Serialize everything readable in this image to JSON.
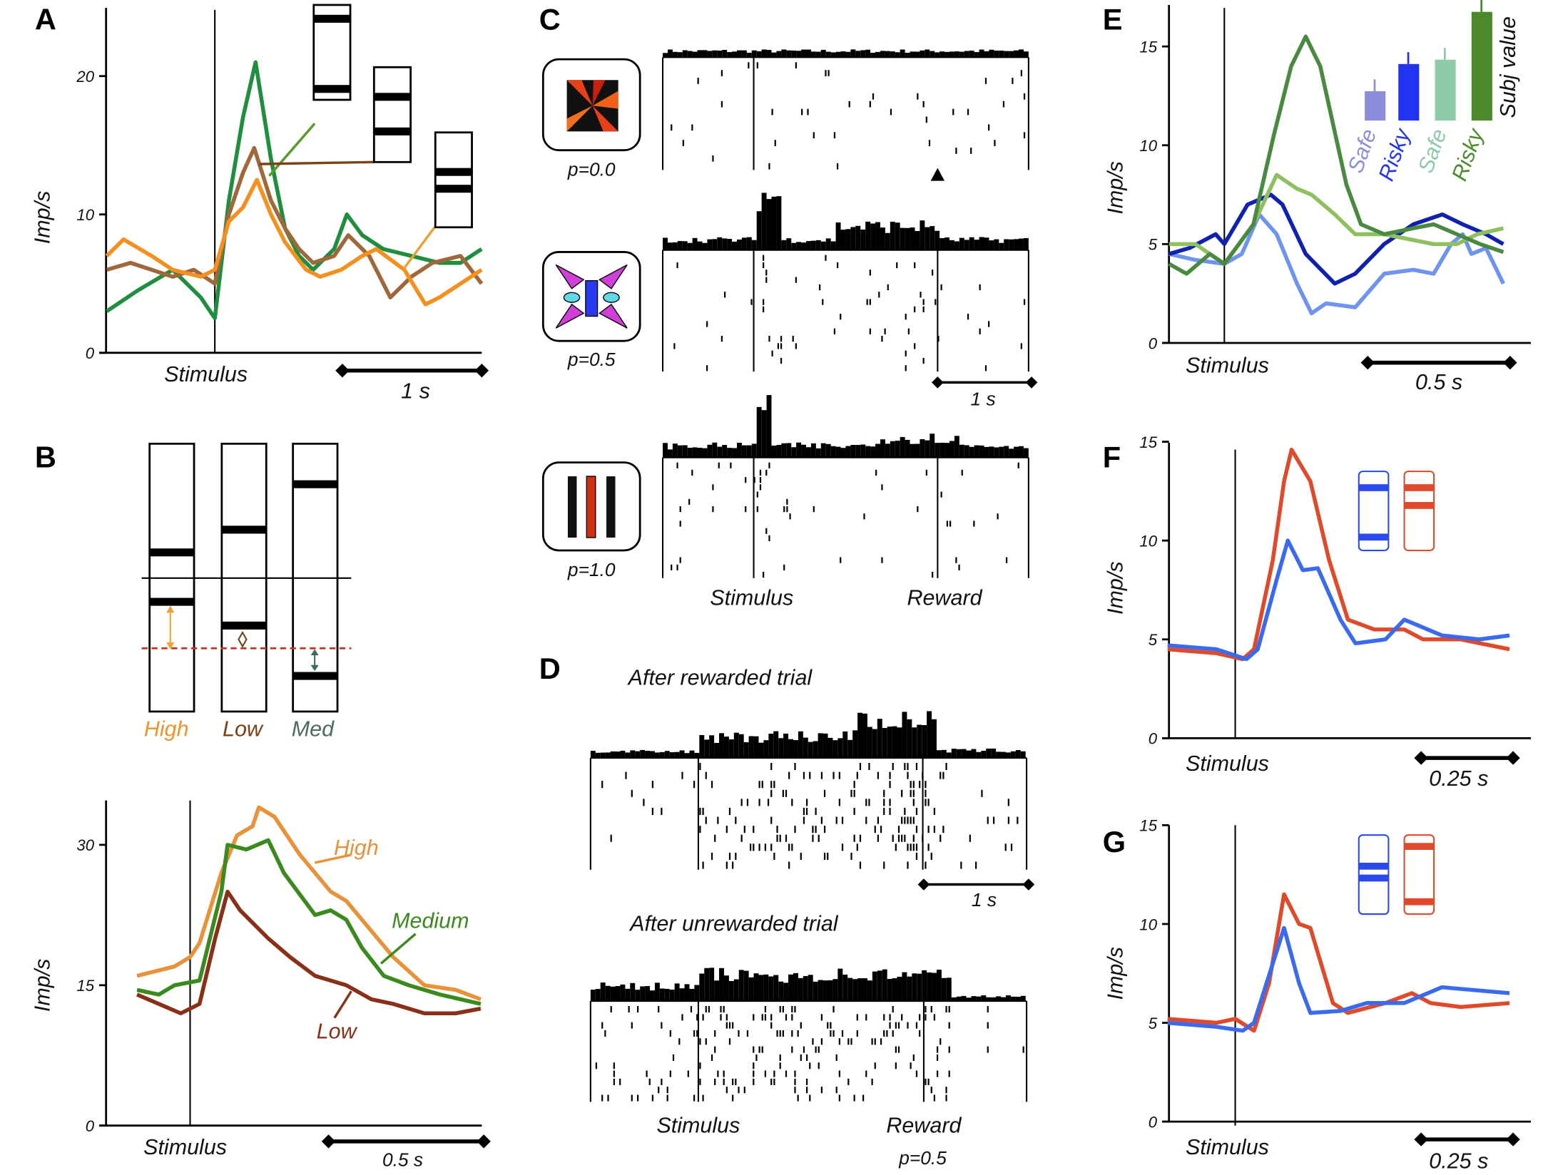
{
  "panel_labels": {
    "A": "A",
    "B": "B",
    "C": "C",
    "D": "D",
    "E": "E",
    "F": "F",
    "G": "G"
  },
  "common": {
    "stimulus": "Stimulus",
    "reward": "Reward",
    "ylabel": "Imp/s"
  },
  "panel_a": {
    "scale_bar": "1 s"
  },
  "panel_b": {
    "schematic_labels": [
      {
        "text": "High",
        "color": "#f0932b"
      },
      {
        "text": "Low",
        "color": "#7a3f12"
      },
      {
        "text": "Med",
        "color": "#4c6b5c"
      }
    ],
    "scale_bar": "0.5 s"
  },
  "panel_c": {
    "rows": [
      {
        "prob": "p=0.0",
        "icon": "pinwheel-stimulus"
      },
      {
        "prob": "p=0.5",
        "icon": "bowtie-stimulus"
      },
      {
        "prob": "p=1.0",
        "icon": "bars-stimulus"
      }
    ],
    "scale_bar": "1 s"
  },
  "panel_d": {
    "title_rewarded": "After rewarded trial",
    "title_unrewarded": "After unrewarded trial",
    "scale_bar": "1 s",
    "prob": "p=0.5"
  },
  "panel_e": {
    "scale_bar": "0.5 s",
    "inset_title": "Subj value",
    "inset_bars": [
      {
        "label": "Safe",
        "color": "#8b8fdb",
        "relative_value": 0.27
      },
      {
        "label": "Risky",
        "color": "#2234f0",
        "relative_value": 0.52
      },
      {
        "label": "Safe",
        "color": "#8dcaa8",
        "relative_value": 0.56
      },
      {
        "label": "Risky",
        "color": "#4a8a2a",
        "relative_value": 1.0
      }
    ]
  },
  "panel_f": {
    "scale_bar": "0.25 s"
  },
  "panel_g": {
    "scale_bar": "0.25 s"
  },
  "chart_data": [
    {
      "panel": "A",
      "type": "line",
      "xlabel": "Stimulus",
      "ylabel": "Imp/s",
      "x_units": "s",
      "ylim": [
        0,
        24
      ],
      "y_ticks": [
        0,
        10,
        20
      ],
      "series": [
        {
          "color": "#1f8f3f",
          "x": [
            -0.77,
            -0.55,
            -0.3,
            -0.1,
            0,
            0.1,
            0.2,
            0.29,
            0.4,
            0.5,
            0.6,
            0.7,
            0.85,
            0.94,
            1.05,
            1.2,
            1.4,
            1.6,
            1.75,
            1.9
          ],
          "y": [
            3,
            4.5,
            6,
            4,
            2.5,
            11,
            17,
            21,
            14,
            9,
            7,
            6,
            7.5,
            10,
            8.5,
            7.5,
            7,
            6.5,
            6.5,
            7.5
          ]
        },
        {
          "color": "#a0683a",
          "x": [
            -0.77,
            -0.6,
            -0.45,
            -0.3,
            -0.15,
            0,
            0.1,
            0.2,
            0.28,
            0.4,
            0.5,
            0.6,
            0.7,
            0.85,
            0.95,
            1.1,
            1.25,
            1.4,
            1.55,
            1.75,
            1.9
          ],
          "y": [
            6,
            6.5,
            6,
            5.5,
            6,
            5,
            10,
            13,
            14.8,
            11,
            9,
            7.5,
            6.5,
            7,
            8.5,
            7,
            4,
            5.5,
            6.5,
            7,
            5
          ]
        },
        {
          "color": "#f5901e",
          "x": [
            -0.77,
            -0.65,
            -0.45,
            -0.3,
            -0.1,
            0,
            0.1,
            0.2,
            0.3,
            0.4,
            0.5,
            0.65,
            0.75,
            0.9,
            1.05,
            1.15,
            1.35,
            1.5,
            1.6,
            1.75,
            1.9
          ],
          "y": [
            7,
            8.2,
            7,
            6,
            5.5,
            6,
            9.5,
            10.5,
            12.5,
            10,
            8,
            6,
            5.5,
            6,
            7,
            7.5,
            6,
            3.5,
            4,
            5,
            6
          ]
        }
      ]
    },
    {
      "panel": "B",
      "type": "line",
      "xlabel": "Stimulus",
      "ylabel": "Imp/s",
      "x_units": "s",
      "ylim": [
        0,
        35
      ],
      "y_ticks": [
        0,
        15,
        30
      ],
      "series": [
        {
          "name": "High",
          "color": "#e8923a",
          "x": [
            -0.17,
            -0.05,
            0,
            0.03,
            0.1,
            0.15,
            0.2,
            0.22,
            0.27,
            0.35,
            0.45,
            0.5,
            0.55,
            0.65,
            0.75,
            0.85,
            0.93
          ],
          "y": [
            16,
            17,
            18,
            19.5,
            27,
            31,
            32,
            34,
            33,
            29,
            25,
            24,
            22,
            18,
            15,
            14.5,
            13.5
          ]
        },
        {
          "name": "Medium",
          "color": "#3a8a1e",
          "x": [
            -0.17,
            -0.1,
            -0.05,
            0.03,
            0.1,
            0.12,
            0.18,
            0.25,
            0.3,
            0.4,
            0.45,
            0.5,
            0.55,
            0.62,
            0.7,
            0.8,
            0.93
          ],
          "y": [
            14.5,
            14,
            15,
            15.5,
            25,
            30,
            29.5,
            30.5,
            27,
            22.5,
            23,
            22,
            19,
            16,
            15,
            14,
            13
          ]
        },
        {
          "name": "Low",
          "color": "#8a3018",
          "x": [
            -0.17,
            -0.1,
            -0.03,
            0.03,
            0.08,
            0.12,
            0.16,
            0.25,
            0.32,
            0.4,
            0.5,
            0.58,
            0.65,
            0.75,
            0.85,
            0.93
          ],
          "y": [
            14,
            13,
            12,
            13,
            20,
            25,
            23,
            20,
            18,
            16,
            15,
            13.5,
            13,
            12,
            12,
            12.5
          ]
        }
      ]
    },
    {
      "panel": "E",
      "type": "line",
      "xlabel": "Stimulus",
      "ylabel": "Imp/s",
      "x_units": "s",
      "ylim": [
        0,
        17
      ],
      "y_ticks": [
        0,
        5,
        10,
        15
      ],
      "series": [
        {
          "name": "Safe",
          "color": "#6f93f0",
          "x": [
            -0.19,
            -0.1,
            0,
            0.06,
            0.12,
            0.18,
            0.25,
            0.3,
            0.35,
            0.45,
            0.55,
            0.65,
            0.72,
            0.78,
            0.82,
            0.85,
            0.9,
            0.96
          ],
          "y": [
            4.5,
            4.2,
            4,
            4.5,
            6.5,
            5.5,
            3,
            1.5,
            2,
            1.8,
            3.5,
            3.7,
            3.5,
            5,
            5.5,
            4.5,
            4.8,
            3
          ]
        },
        {
          "name": "Risky",
          "color": "#1020b0",
          "x": [
            -0.19,
            -0.12,
            -0.03,
            0,
            0.08,
            0.16,
            0.2,
            0.28,
            0.38,
            0.45,
            0.55,
            0.65,
            0.75,
            0.82,
            0.9,
            0.96
          ],
          "y": [
            4.5,
            4.8,
            5.5,
            5,
            7,
            7.5,
            7,
            4.5,
            3,
            3.5,
            5,
            6,
            6.5,
            6,
            5.5,
            5
          ]
        },
        {
          "name": "Safe",
          "color": "#8fc060",
          "x": [
            -0.19,
            -0.1,
            0,
            0.1,
            0.18,
            0.25,
            0.3,
            0.38,
            0.45,
            0.55,
            0.72,
            0.8,
            0.87,
            0.96
          ],
          "y": [
            5,
            5,
            4,
            6,
            8.5,
            7.8,
            7.5,
            6.5,
            5.5,
            5.5,
            5,
            5,
            5.5,
            5.8
          ]
        },
        {
          "name": "Risky",
          "color": "#4a8a40",
          "x": [
            -0.19,
            -0.13,
            -0.05,
            0,
            0.1,
            0.17,
            0.23,
            0.28,
            0.33,
            0.42,
            0.47,
            0.55,
            0.65,
            0.72,
            0.8,
            0.88,
            0.96
          ],
          "y": [
            4,
            3.5,
            4.5,
            4,
            6,
            10.5,
            14,
            15.5,
            14,
            8,
            6,
            5.5,
            5.8,
            6,
            5.5,
            5,
            4.6
          ]
        }
      ]
    },
    {
      "panel": "F",
      "type": "line",
      "xlabel": "Stimulus",
      "ylabel": "Imp/s",
      "x_units": "s",
      "ylim": [
        0,
        15
      ],
      "y_ticks": [
        0,
        5,
        10,
        15
      ],
      "series": [
        {
          "color": "#e04a2a",
          "x": [
            -0.18,
            -0.05,
            0.02,
            0.05,
            0.1,
            0.13,
            0.15,
            0.2,
            0.25,
            0.3,
            0.37,
            0.45,
            0.5,
            0.6,
            0.73
          ],
          "y": [
            4.5,
            4.3,
            4,
            4.5,
            9,
            13,
            14.6,
            13,
            9,
            6,
            5.5,
            5.5,
            5,
            5,
            4.5
          ]
        },
        {
          "color": "#3a6af0",
          "x": [
            -0.18,
            -0.05,
            0.03,
            0.06,
            0.11,
            0.14,
            0.18,
            0.22,
            0.28,
            0.32,
            0.4,
            0.45,
            0.55,
            0.65,
            0.73
          ],
          "y": [
            4.7,
            4.5,
            4,
            4.5,
            8,
            10,
            8.5,
            8.6,
            6,
            4.8,
            5,
            6,
            5.2,
            5,
            5.2
          ]
        }
      ]
    },
    {
      "panel": "G",
      "type": "line",
      "xlabel": "Stimulus",
      "ylabel": "Imp/s",
      "x_units": "s",
      "ylim": [
        0,
        15
      ],
      "y_ticks": [
        0,
        5,
        10,
        15
      ],
      "series": [
        {
          "color": "#e04a2a",
          "x": [
            -0.18,
            -0.05,
            0,
            0.05,
            0.09,
            0.13,
            0.17,
            0.2,
            0.26,
            0.3,
            0.4,
            0.47,
            0.52,
            0.6,
            0.73
          ],
          "y": [
            5.2,
            5,
            5.2,
            4.6,
            7,
            11.5,
            10,
            9.8,
            6,
            5.5,
            6,
            6.5,
            6,
            5.8,
            6
          ]
        },
        {
          "color": "#3a6af0",
          "x": [
            -0.18,
            -0.05,
            0.02,
            0.05,
            0.1,
            0.13,
            0.17,
            0.2,
            0.28,
            0.35,
            0.45,
            0.55,
            0.73
          ],
          "y": [
            5,
            4.8,
            4.6,
            5,
            8,
            9.8,
            7,
            5.5,
            5.6,
            6,
            6,
            6.8,
            6.5
          ]
        }
      ]
    }
  ]
}
